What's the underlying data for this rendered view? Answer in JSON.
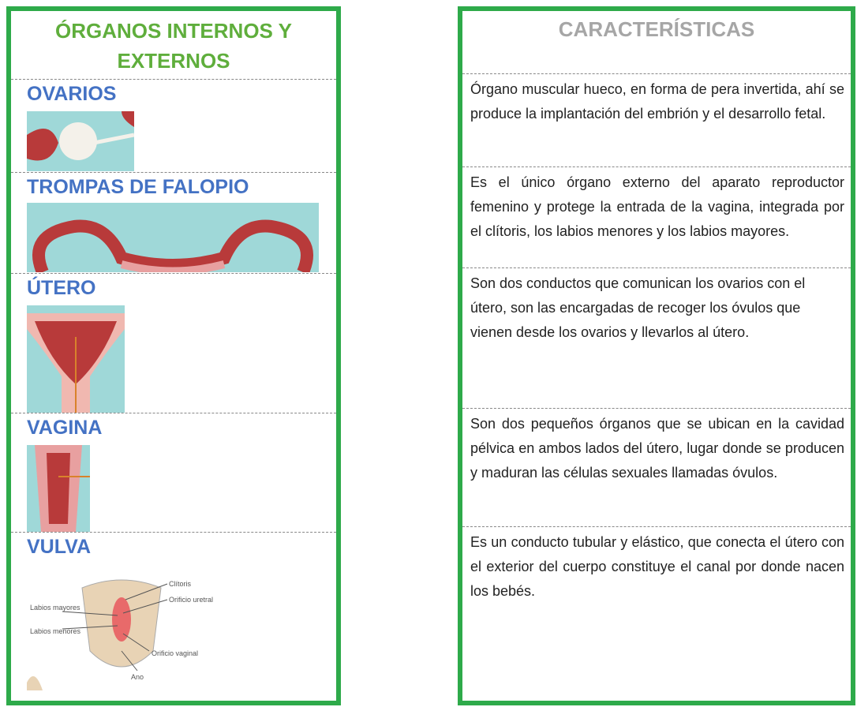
{
  "left": {
    "title": "ÓRGANOS INTERNOS Y EXTERNOS",
    "organs": [
      "OVARIOS",
      "TROMPAS DE FALOPIO",
      "ÚTERO",
      "VAGINA",
      "VULVA"
    ]
  },
  "vulva_diagram": {
    "labels": [
      "Clítoris",
      "Orificio uretral",
      "Labios mayores",
      "Labios menores",
      "Orificio vaginal",
      "Ano"
    ]
  },
  "right": {
    "title": "CARACTERÍSTICAS",
    "descriptions": [
      "Órgano muscular hueco, en forma de pera invertida, ahí se produce la implantación del embrión y el desarrollo fetal.",
      "Es el único órgano externo del aparato reproductor femenino y protege la entrada de la vagina, integrada por el clítoris, los labios menores y los labios mayores.",
      "Son dos conductos que comunican los ovarios con el útero, son las encargadas de recoger los óvulos que vienen desde los ovarios y llevarlos al útero.",
      "Son dos pequeños órganos que se ubican en la cavidad pélvica en ambos lados del útero, lugar donde se producen y maduran las células sexuales llamadas óvulos.",
      "Es un conducto tubular y elástico, que conecta el útero con el exterior del cuerpo constituye el canal por donde nacen los bebés."
    ]
  }
}
